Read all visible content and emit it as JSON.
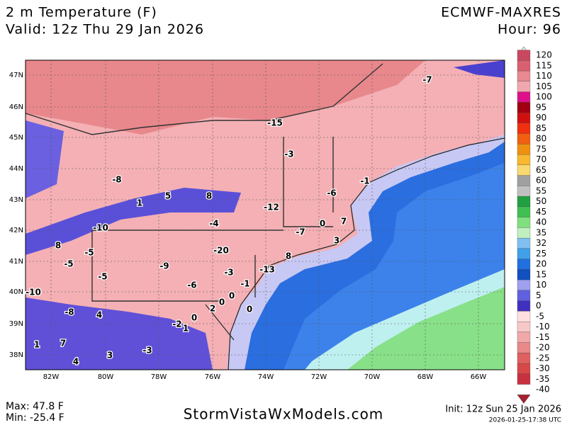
{
  "header": {
    "title": "2 m Temperature (F)",
    "valid": "Valid: 12z Thu 29 Jan 2026",
    "model": "ECMWF-MAXRES",
    "hour": "Hour: 96"
  },
  "map": {
    "lat_labels": [
      "47N",
      "46N",
      "45N",
      "44N",
      "43N",
      "42N",
      "41N",
      "40N",
      "39N",
      "38N"
    ],
    "lon_labels": [
      "82W",
      "80W",
      "78W",
      "76W",
      "74W",
      "72W",
      "70W",
      "68W",
      "66W"
    ],
    "stations": [
      "-7",
      "-15",
      "-3",
      "-8",
      "-1",
      "5",
      "8",
      "-6",
      "1",
      "-12",
      "-4",
      "-10",
      "-7",
      "0",
      "7",
      "8",
      "-5",
      "-20",
      "3",
      "8",
      "-5",
      "-9",
      "-3",
      "-13",
      "-5",
      "-6",
      "-1",
      "-10",
      "0",
      "0",
      "-8",
      "4",
      "0",
      "2",
      "0",
      "-2",
      "1",
      "1",
      "7",
      "-3",
      "3",
      "4"
    ]
  },
  "colorbar": {
    "labels": [
      "120",
      "115",
      "110",
      "105",
      "100",
      "95",
      "90",
      "85",
      "80",
      "75",
      "70",
      "65",
      "60",
      "55",
      "50",
      "45",
      "40",
      "35",
      "32",
      "25",
      "20",
      "15",
      "10",
      "5",
      "0",
      "-5",
      "-10",
      "-15",
      "-20",
      "-25",
      "-30",
      "-35",
      "-40"
    ],
    "colors": [
      "#e8e8e8",
      "#c84860",
      "#d86070",
      "#e88890",
      "#f0a8b0",
      "#e0108c",
      "#a00010",
      "#d01010",
      "#f03010",
      "#f06010",
      "#f09010",
      "#f8b830",
      "#f8d870",
      "#a0a0a0",
      "#c0c0c0",
      "#20a040",
      "#40c050",
      "#80e080",
      "#c0f0c0",
      "#80c0f0",
      "#40a0e8",
      "#2070e0",
      "#1050c0",
      "#a0a0f0",
      "#6060e0",
      "#4030c0",
      "#ffe0e0",
      "#f8c8c8",
      "#f0a8a8",
      "#e88888",
      "#e06060",
      "#d84848",
      "#c83040",
      "#a82030"
    ]
  },
  "footer": {
    "max": "Max: 47.8 F",
    "min": "Min: -25.4 F",
    "site": "StormVistaWxModels.com",
    "init": "Init: 12z Sun 25 Jan 2026",
    "timestamp": "2026-01-25-17:38 UTC"
  }
}
